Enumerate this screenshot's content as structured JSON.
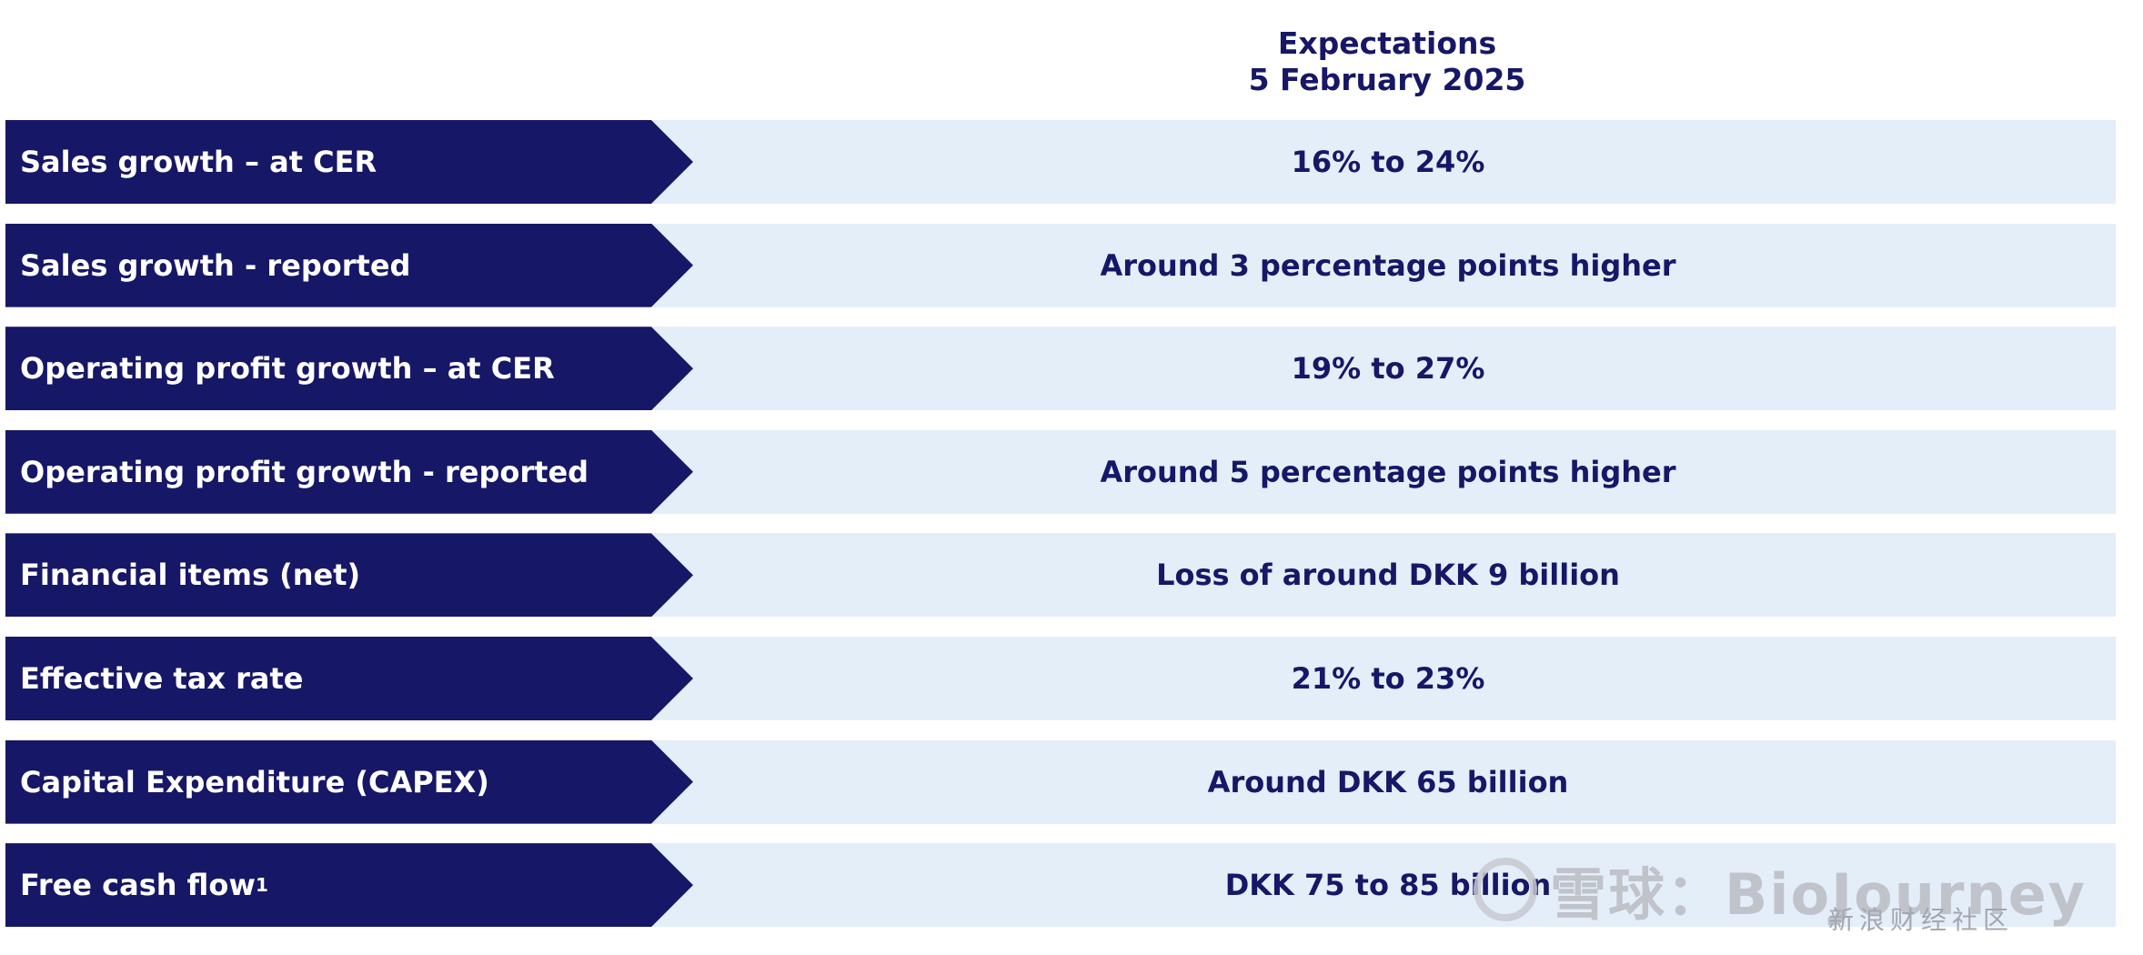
{
  "header": {
    "line1": "Expectations",
    "line2": "5 February 2025"
  },
  "rows": [
    {
      "label": "Sales growth – at CER",
      "value": "16% to 24%"
    },
    {
      "label": "Sales growth - reported",
      "value": "Around 3 percentage points higher"
    },
    {
      "label": "Operating profit growth – at CER",
      "value": "19% to 27%"
    },
    {
      "label": "Operating profit growth - reported",
      "value": "Around 5 percentage points higher"
    },
    {
      "label": "Financial items (net)",
      "value": "Loss of around DKK 9 billion"
    },
    {
      "label": "Effective tax rate",
      "value": "21% to 23%"
    },
    {
      "label": "Capital Expenditure (CAPEX)",
      "value": "Around DKK 65 billion"
    },
    {
      "label": "Free cash flow",
      "label_sup": "1",
      "value": "DKK 75 to 85 billion"
    }
  ],
  "watermark": {
    "main": "雪球：BioJourney",
    "sub": "新浪财经社区"
  },
  "colors": {
    "navy": "#171767",
    "row_bg": "#e3eef9"
  }
}
